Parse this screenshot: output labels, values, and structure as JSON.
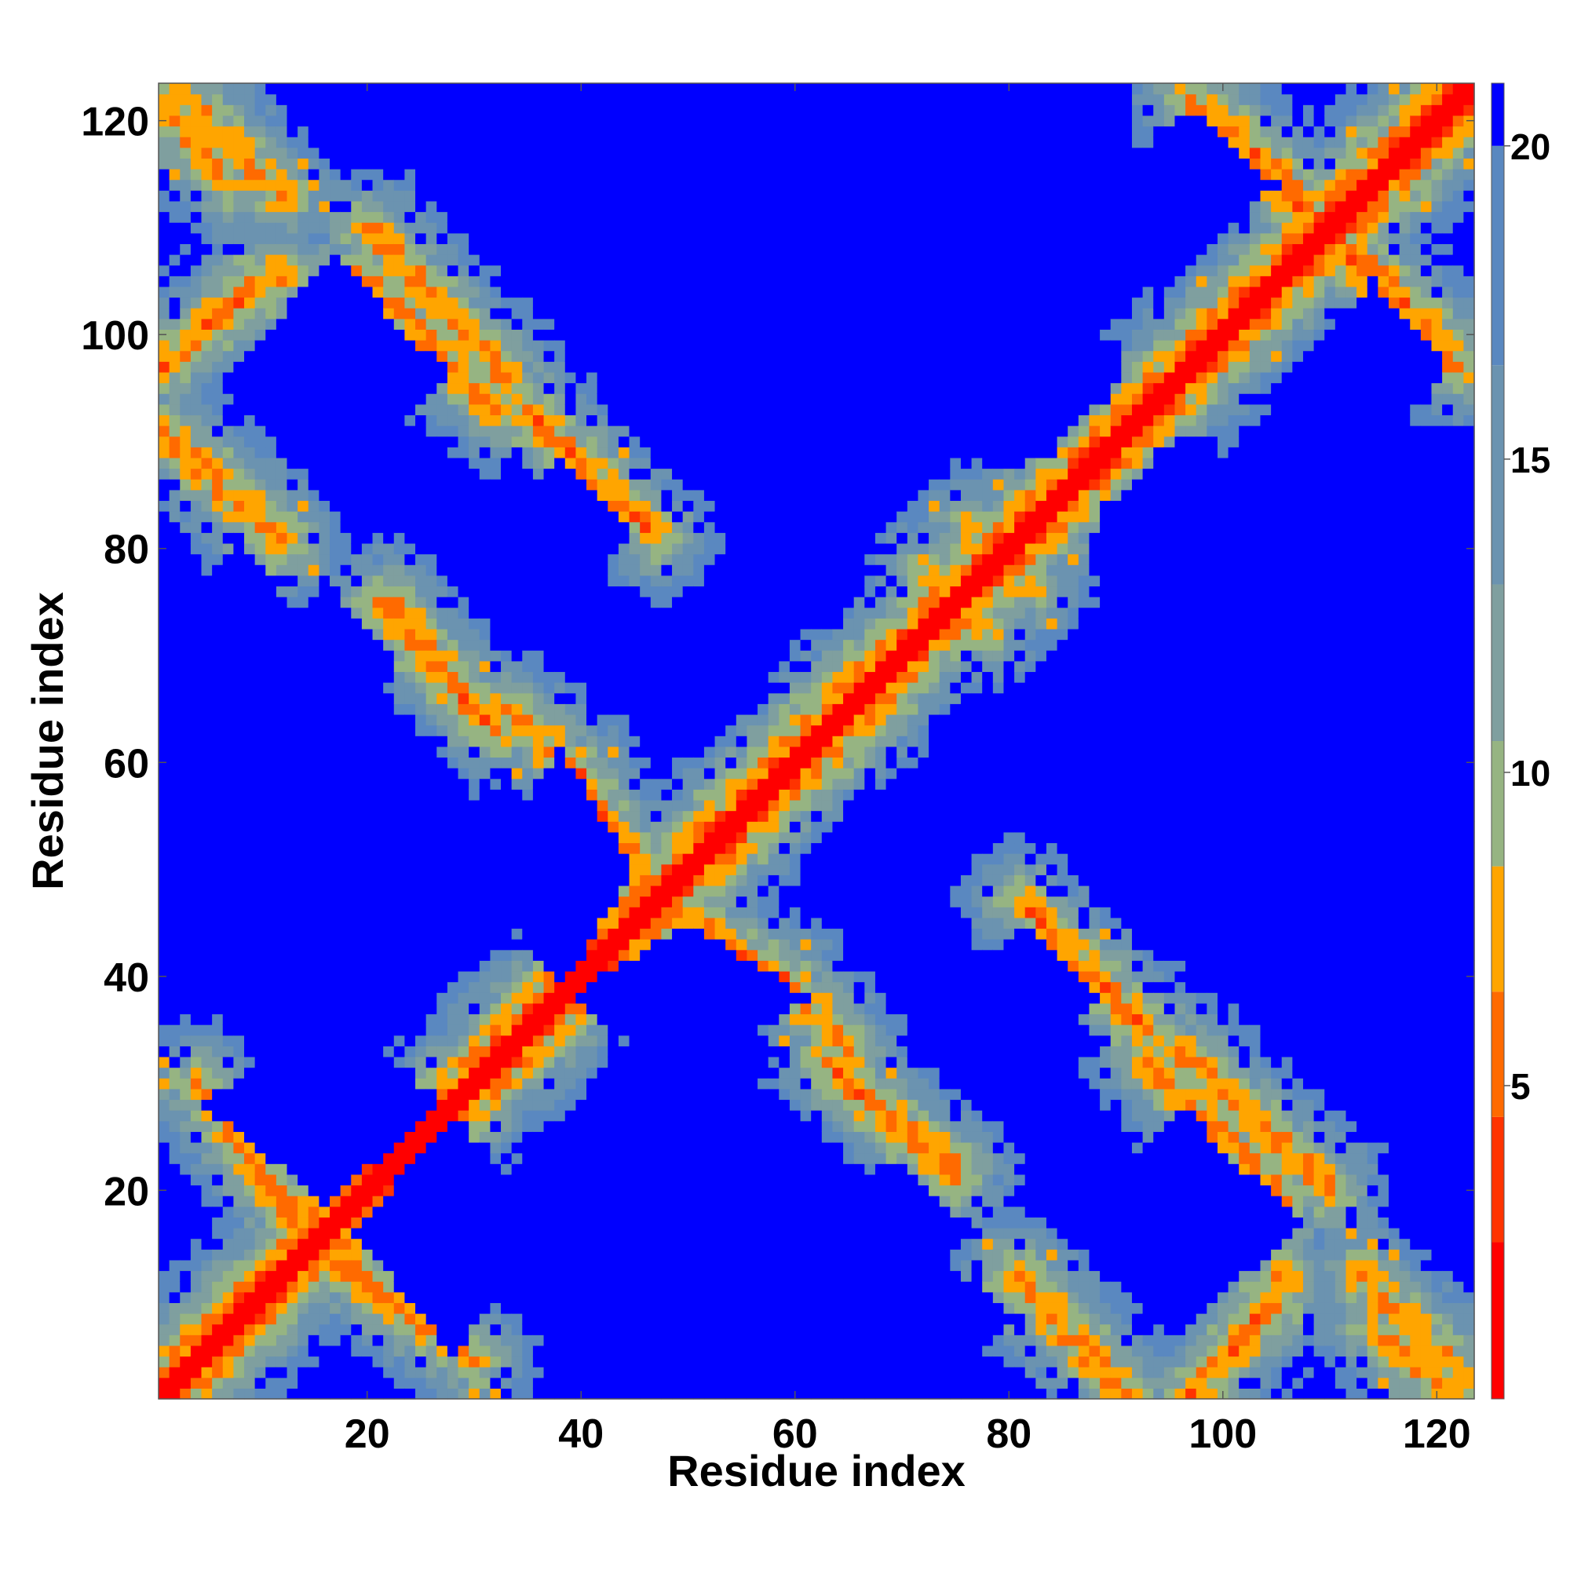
{
  "chart_data": {
    "type": "heatmap",
    "title": "",
    "xlabel": "Residue index",
    "ylabel": "Residue index",
    "n_residues": 123,
    "xlim": [
      1,
      123
    ],
    "ylim": [
      1,
      123
    ],
    "x_ticks": [
      20,
      40,
      60,
      80,
      100,
      120
    ],
    "y_ticks": [
      20,
      40,
      60,
      80,
      100,
      120
    ],
    "colorbar": {
      "ticks": [
        5,
        10,
        15,
        20
      ],
      "range": [
        0,
        21
      ],
      "levels": [
        {
          "max": 2.5,
          "color": "#ff0000"
        },
        {
          "max": 4.5,
          "color": "#ff3300"
        },
        {
          "max": 6.5,
          "color": "#ff6a00"
        },
        {
          "max": 8.5,
          "color": "#ffa500"
        },
        {
          "max": 10.5,
          "color": "#96b482"
        },
        {
          "max": 13.0,
          "color": "#7f9f9f"
        },
        {
          "max": 16.5,
          "color": "#6b93b0"
        },
        {
          "max": 20.0,
          "color": "#5a88c0"
        },
        {
          "max": 99,
          "color": "#0000ff"
        }
      ]
    },
    "contact_segments": [
      {
        "kind": "parallel",
        "x": [
          1,
          123
        ],
        "y": [
          1,
          123
        ],
        "value": 2
      },
      {
        "kind": "anti",
        "x": [
          1,
          12
        ],
        "y": [
          91,
          81
        ],
        "value": 6
      },
      {
        "kind": "anti",
        "x": [
          3,
          12
        ],
        "y": [
          122,
          113
        ],
        "value": 6
      },
      {
        "kind": "anti",
        "x": [
          3,
          12
        ],
        "y": [
          99,
          106
        ],
        "value": 6
      },
      {
        "kind": "anti",
        "x": [
          5,
          14
        ],
        "y": [
          29,
          16
        ],
        "value": 6
      },
      {
        "kind": "anti",
        "x": [
          17,
          30
        ],
        "y": [
          13,
          4
        ],
        "value": 6
      },
      {
        "kind": "anti",
        "x": [
          20,
          33
        ],
        "y": [
          110,
          96
        ],
        "value": 6
      },
      {
        "kind": "anti",
        "x": [
          34,
          47
        ],
        "y": [
          94,
          81
        ],
        "value": 6
      },
      {
        "kind": "anti",
        "x": [
          21,
          31
        ],
        "y": [
          75,
          64
        ],
        "value": 6
      },
      {
        "kind": "anti",
        "x": [
          33,
          40
        ],
        "y": [
          65,
          59
        ],
        "value": 6
      },
      {
        "kind": "anti",
        "x": [
          40,
          46
        ],
        "y": [
          57,
          49
        ],
        "value": 6
      },
      {
        "kind": "anti",
        "x": [
          48,
          59
        ],
        "y": [
          47,
          39
        ],
        "value": 6
      },
      {
        "kind": "anti",
        "x": [
          59,
          64
        ],
        "y": [
          40,
          34
        ],
        "value": 6
      },
      {
        "kind": "anti",
        "x": [
          63,
          75
        ],
        "y": [
          32,
          22
        ],
        "value": 6
      },
      {
        "kind": "anti",
        "x": [
          81,
          91
        ],
        "y": [
          47,
          36
        ],
        "value": 6
      },
      {
        "kind": "anti",
        "x": [
          93,
          106
        ],
        "y": [
          32,
          19
        ],
        "value": 6
      },
      {
        "kind": "anti",
        "x": [
          80,
          91
        ],
        "y": [
          12,
          1
        ],
        "value": 6
      },
      {
        "kind": "anti",
        "x": [
          97,
          105
        ],
        "y": [
          1,
          9
        ],
        "value": 6
      },
      {
        "kind": "anti",
        "x": [
          114,
          121
        ],
        "y": [
          7,
          1
        ],
        "value": 6
      },
      {
        "kind": "anti",
        "x": [
          97,
          108
        ],
        "y": [
          122,
          111
        ],
        "value": 6
      },
      {
        "kind": "anti",
        "x": [
          110,
          121
        ],
        "y": [
          110,
          99
        ],
        "value": 6
      },
      {
        "kind": "anti",
        "x": [
          72,
          82
        ],
        "y": [
          78,
          76
        ],
        "value": 7
      }
    ],
    "blue_domains": [
      {
        "x": [
          6,
          26
        ],
        "y": [
          20,
          36
        ]
      },
      {
        "x": [
          8,
          26
        ],
        "y": [
          86,
          106
        ]
      },
      {
        "x": [
          32,
          44
        ],
        "y": [
          75,
          88
        ]
      },
      {
        "x": [
          32,
          44
        ],
        "y": [
          40,
          60
        ]
      },
      {
        "x": [
          42,
          62
        ],
        "y": [
          10,
          24
        ]
      },
      {
        "x": [
          44,
          58
        ],
        "y": [
          28,
          38
        ]
      },
      {
        "x": [
          44,
          58
        ],
        "y": [
          62,
          72
        ]
      },
      {
        "x": [
          44,
          58
        ],
        "y": [
          86,
          98
        ]
      },
      {
        "x": [
          30,
          44
        ],
        "y": [
          108,
          120
        ]
      },
      {
        "x": [
          64,
          80
        ],
        "y": [
          2,
          14
        ]
      },
      {
        "x": [
          72,
          88
        ],
        "y": [
          28,
          40
        ]
      },
      {
        "x": [
          72,
          88
        ],
        "y": [
          88,
          100
        ]
      },
      {
        "x": [
          90,
          104
        ],
        "y": [
          10,
          26
        ]
      },
      {
        "x": [
          90,
          104
        ],
        "y": [
          44,
          58
        ]
      },
      {
        "x": [
          90,
          104
        ],
        "y": [
          78,
          90
        ]
      },
      {
        "x": [
          90,
          104
        ],
        "y": [
          108,
          120
        ]
      },
      {
        "x": [
          104,
          118
        ],
        "y": [
          32,
          44
        ]
      },
      {
        "x": [
          104,
          118
        ],
        "y": [
          88,
          100
        ]
      },
      {
        "x": [
          10,
          22
        ],
        "y": [
          62,
          76
        ]
      },
      {
        "x": [
          104,
          120
        ],
        "y": [
          52,
          62
        ]
      }
    ]
  }
}
